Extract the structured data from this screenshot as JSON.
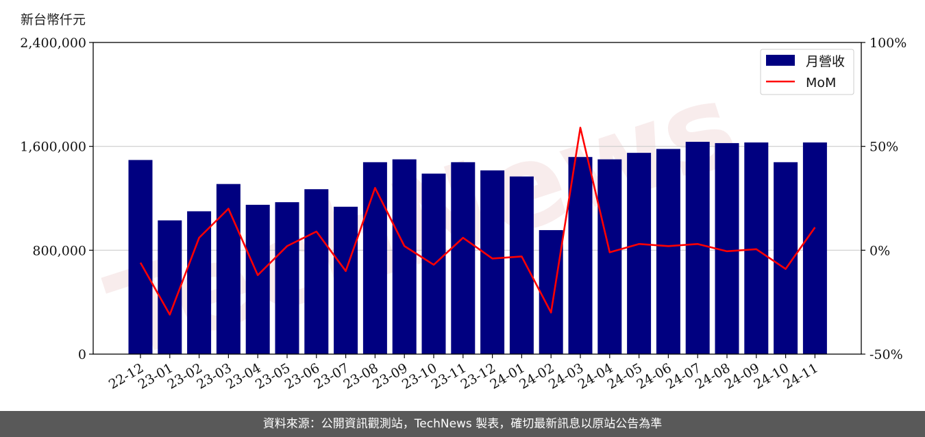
{
  "chart_data": {
    "type": "bar",
    "title": "",
    "y_unit_label": "新台幣仟元",
    "categories": [
      "22-12",
      "23-01",
      "23-02",
      "23-03",
      "23-04",
      "23-05",
      "23-06",
      "23-07",
      "23-08",
      "23-09",
      "23-10",
      "23-11",
      "23-12",
      "24-01",
      "24-02",
      "24-03",
      "24-04",
      "24-05",
      "24-06",
      "24-07",
      "24-08",
      "24-09",
      "24-10",
      "24-11"
    ],
    "series": [
      {
        "name": "月營收",
        "axis": "left",
        "kind": "bar",
        "color": "#000080",
        "values": [
          1495000,
          1030000,
          1100000,
          1310000,
          1150000,
          1170000,
          1270000,
          1135000,
          1478000,
          1500000,
          1390000,
          1478000,
          1415000,
          1368000,
          955000,
          1518000,
          1500000,
          1550000,
          1580000,
          1635000,
          1625000,
          1630000,
          1478000,
          1630000
        ]
      },
      {
        "name": "MoM",
        "axis": "right",
        "kind": "line",
        "color": "#ff0000",
        "values": [
          -6,
          -31,
          6,
          20,
          -12,
          2,
          9,
          -10,
          30,
          2,
          -7,
          6,
          -4,
          -3,
          -30,
          59,
          -1,
          3,
          2,
          3,
          -0.5,
          0.5,
          -9,
          11
        ]
      }
    ],
    "y_left": {
      "ylim": [
        0,
        2400000
      ],
      "ticks": [
        "0",
        "800,000",
        "1,600,000",
        "2,400,000"
      ],
      "tick_values": [
        0,
        800000,
        1600000,
        2400000
      ]
    },
    "y_right": {
      "ylim": [
        -50,
        100
      ],
      "ticks": [
        "-50%",
        "0%",
        "50%",
        "100%"
      ],
      "tick_values": [
        -50,
        0,
        50,
        100
      ]
    },
    "grid": "horizontal",
    "legend_position": "top-right"
  },
  "watermark": "TechNews",
  "footer": {
    "text": "資料來源：公開資訊觀測站，TechNews 製表，確切最新訊息以原站公告為準"
  }
}
